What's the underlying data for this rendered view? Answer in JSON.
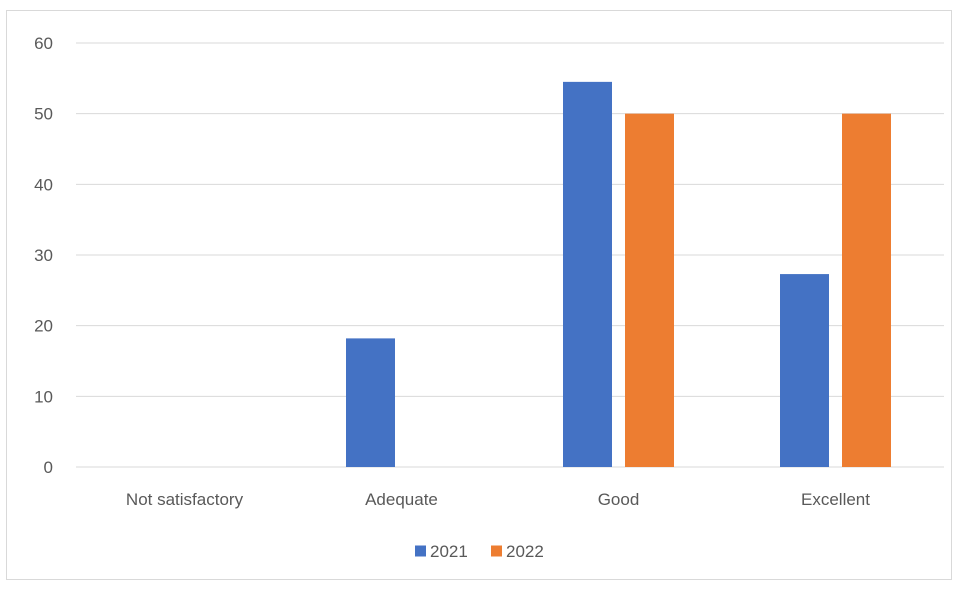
{
  "chart_data": {
    "type": "bar",
    "categories": [
      "Not satisfactory",
      "Adequate",
      "Good",
      "Excellent"
    ],
    "series": [
      {
        "name": "2021",
        "values": [
          0,
          18.2,
          54.5,
          27.3
        ],
        "color": "#4472C4"
      },
      {
        "name": "2022",
        "values": [
          0,
          0,
          50,
          50
        ],
        "color": "#ED7D31"
      }
    ],
    "title": "",
    "xlabel": "",
    "ylabel": "",
    "ylim": [
      0,
      60
    ],
    "yticks": [
      0,
      10,
      20,
      30,
      40,
      50,
      60
    ],
    "grid": true,
    "legend_position": "bottom",
    "gridline_color": "#d9d9d9",
    "axis_color": "#d9d9d9"
  }
}
